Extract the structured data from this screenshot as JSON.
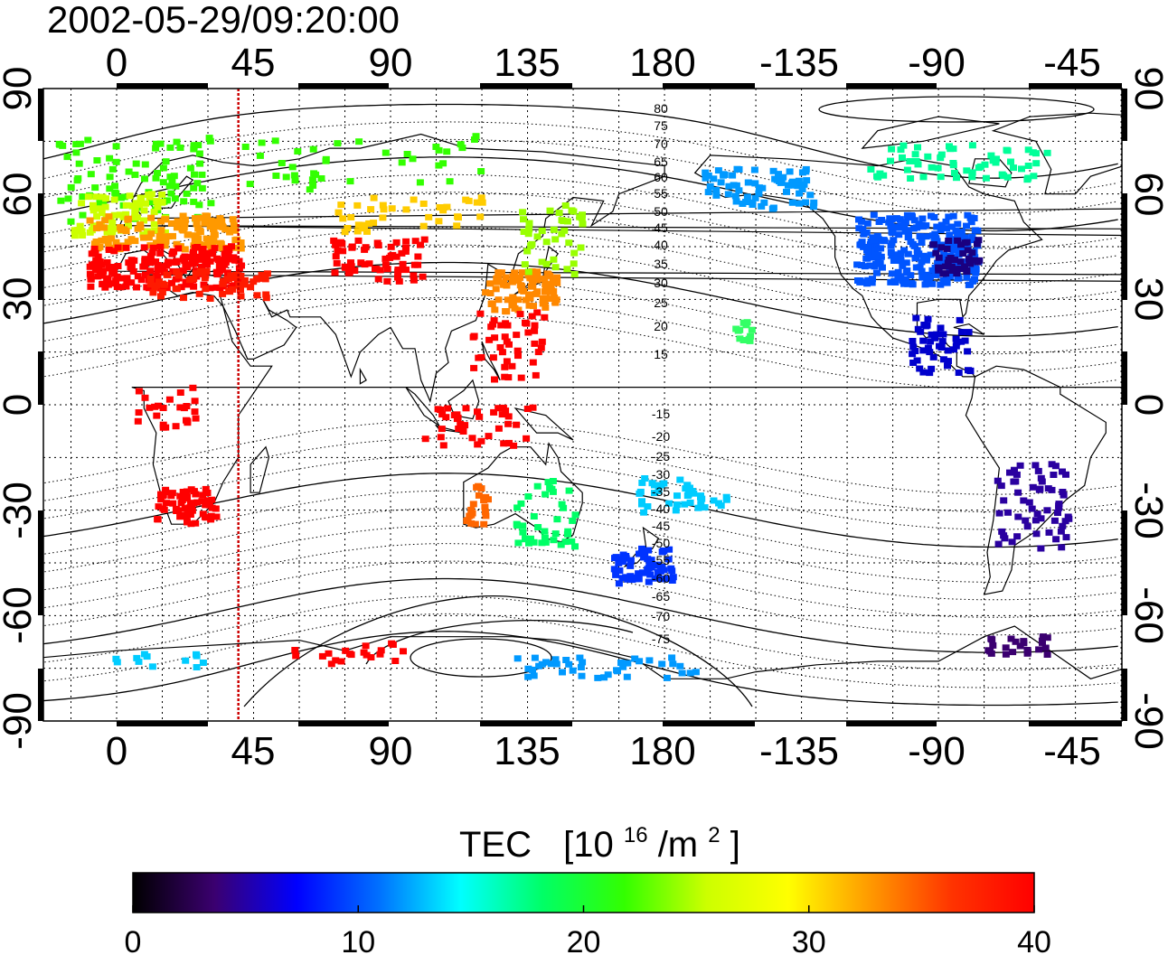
{
  "timestamp": "2002-05-29/09:20:00",
  "colorbar": {
    "title_main": "TEC",
    "title_unit_open": "[10",
    "title_unit_exp1": "16",
    "title_unit_mid": "/m",
    "title_unit_exp2": "2",
    "title_unit_close": "]",
    "min": 0,
    "max": 40,
    "tick_labels": [
      "0",
      "10",
      "20",
      "30",
      "40"
    ],
    "colors": [
      "#000000",
      "#3b0070",
      "#0000ff",
      "#0070ff",
      "#00ffff",
      "#00ff66",
      "#33ff00",
      "#ccff00",
      "#ffff00",
      "#ff9900",
      "#ff3300",
      "#ff0000"
    ]
  },
  "axes": {
    "longitude_tick_labels": [
      "0",
      "45",
      "90",
      "135",
      "180",
      "-135",
      "-90",
      "-45"
    ],
    "latitude_tick_labels": [
      "90",
      "60",
      "30",
      "0",
      "-30",
      "-60",
      "-90"
    ]
  },
  "magnetic_latitude_labels": [
    "80",
    "75",
    "70",
    "65",
    "60",
    "55",
    "50",
    "45",
    "40",
    "35",
    "30",
    "25",
    "20",
    "15",
    "-15",
    "-20",
    "-25",
    "-30",
    "-35",
    "-40",
    "-45",
    "-50",
    "-55",
    "-60",
    "-65",
    "-70",
    "-75"
  ],
  "marker": {
    "longitude": 40,
    "color": "#cc0000"
  },
  "tec_regions": [
    {
      "name": "north-atlantic-europe",
      "color": "#33ff00"
    },
    {
      "name": "europe-west",
      "color": "#ccff00"
    },
    {
      "name": "europe-mid",
      "color": "#ff9900"
    },
    {
      "name": "europe-south",
      "color": "#ff0000"
    },
    {
      "name": "mediterranean",
      "color": "#ff1a00"
    },
    {
      "name": "africa-north",
      "color": "#ff0000"
    },
    {
      "name": "africa-south",
      "color": "#ff0000"
    },
    {
      "name": "asia-central",
      "color": "#ff0000"
    },
    {
      "name": "asia-north",
      "color": "#ffcc00"
    },
    {
      "name": "siberia",
      "color": "#33ff00"
    },
    {
      "name": "japan",
      "color": "#ff8800"
    },
    {
      "name": "japan-north",
      "color": "#99ff00"
    },
    {
      "name": "east-asia-south",
      "color": "#ff0000"
    },
    {
      "name": "indonesia",
      "color": "#ff0000"
    },
    {
      "name": "australia-west",
      "color": "#ff6600"
    },
    {
      "name": "australia-east",
      "color": "#00ff66"
    },
    {
      "name": "new-zealand",
      "color": "#0033ff"
    },
    {
      "name": "pacific-south",
      "color": "#00ccff"
    },
    {
      "name": "alaska",
      "color": "#0099ff"
    },
    {
      "name": "north-america",
      "color": "#0055ff"
    },
    {
      "name": "north-america-east",
      "color": "#1a0080"
    },
    {
      "name": "canada-north",
      "color": "#00ff99"
    },
    {
      "name": "hawaii",
      "color": "#33ff66"
    },
    {
      "name": "central-america",
      "color": "#0000cc"
    },
    {
      "name": "south-america",
      "color": "#2a00a0"
    },
    {
      "name": "south-america-tip",
      "color": "#3b0070"
    },
    {
      "name": "antarctica-atlantic",
      "color": "#00ccff"
    },
    {
      "name": "antarctica-indian",
      "color": "#ff0000"
    },
    {
      "name": "antarctica-pacific",
      "color": "#0099ff"
    }
  ]
}
